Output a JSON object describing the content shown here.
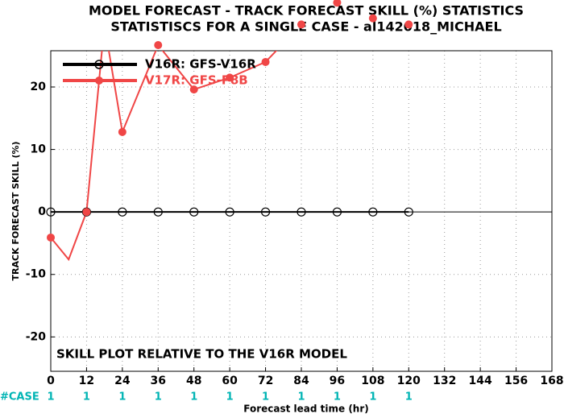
{
  "chart_data": {
    "type": "line",
    "title": "MODEL FORECAST - TRACK FORECAST SKILL (%) STATISTICS",
    "subtitle": "STATISTISCS FOR A SINGLE CASE - al142018_MICHAEL",
    "xlabel": "Forecast lead time (hr)",
    "ylabel": "TRACK FORECAST SKILL (%)",
    "annotation": "SKILL PLOT RELATIVE TO THE V16R MODEL",
    "xlim": [
      0,
      168
    ],
    "xticks": [
      0,
      12,
      24,
      36,
      48,
      60,
      72,
      84,
      96,
      108,
      120,
      132,
      144,
      156,
      168
    ],
    "ylim": [
      -25.5,
      25.8
    ],
    "yticks": [
      -20,
      -10,
      0,
      10,
      20
    ],
    "grid": true,
    "series": [
      {
        "name": "V16R: GFS-V16R",
        "color": "#000000",
        "marker": "circle",
        "x": [
          0,
          12,
          24,
          36,
          48,
          60,
          72,
          84,
          96,
          108,
          120
        ],
        "values": [
          0,
          0,
          0,
          0,
          0,
          0,
          0,
          0,
          0,
          0,
          0
        ]
      },
      {
        "name": "V17R: GFS-P8B",
        "color": "#f04646",
        "marker": "dot",
        "x": [
          0,
          6,
          12,
          18,
          24,
          36,
          48,
          60,
          72,
          84,
          96,
          108,
          120
        ],
        "values": [
          -4.1,
          -7.6,
          0,
          30,
          12.8,
          26.7,
          19.6,
          21.5,
          24,
          30,
          33.5,
          31,
          30
        ]
      }
    ],
    "cases": {
      "label": "#CASE",
      "color": "#00b4b4",
      "x": [
        0,
        12,
        24,
        36,
        48,
        60,
        72,
        84,
        96,
        108,
        120
      ],
      "values": [
        1,
        1,
        1,
        1,
        1,
        1,
        1,
        1,
        1,
        1,
        1
      ]
    }
  }
}
